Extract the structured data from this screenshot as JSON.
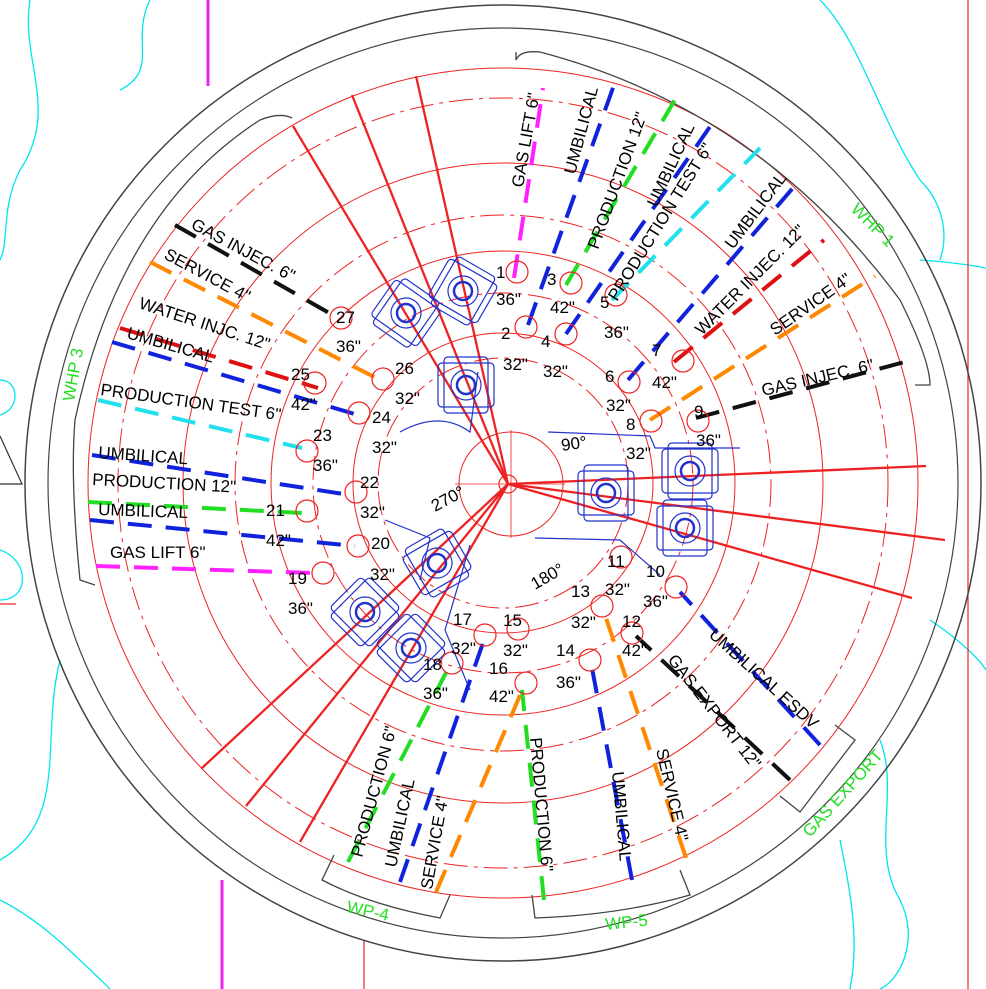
{
  "colors": {
    "background": "#ffffff",
    "rings": "#ee2222",
    "structure": "#2233cc",
    "contours": "#00e5ee",
    "magenta": "#ee22ee",
    "gas_lift": "#ff22ff",
    "umbilical": "#1122dd",
    "production": "#22dd22",
    "production_test": "#22e0ee",
    "water_injection": "#dd1111",
    "service": "#ff8800",
    "gas": "#111111",
    "zone_label": "#22dd22"
  },
  "zones": {
    "whp1": "WHP 1",
    "whp3": "WHP 3",
    "wp4": "WP-4",
    "wp5": "WP-5",
    "gas_export": "GAS EXPORT"
  },
  "angles": {
    "a90": "90°",
    "a180": "180°",
    "a270": "270°"
  },
  "slots": [
    {
      "num": "1",
      "size": "36\""
    },
    {
      "num": "2",
      "size": "32\""
    },
    {
      "num": "3",
      "size": "42\""
    },
    {
      "num": "4",
      "size": "32\""
    },
    {
      "num": "5",
      "size": "36\""
    },
    {
      "num": "6",
      "size": "32\""
    },
    {
      "num": "7",
      "size": "42\""
    },
    {
      "num": "8",
      "size": "32\""
    },
    {
      "num": "9",
      "size": "36\""
    },
    {
      "num": "10",
      "size": "36\""
    },
    {
      "num": "11",
      "size": "32\""
    },
    {
      "num": "12",
      "size": "42\""
    },
    {
      "num": "13",
      "size": "32\""
    },
    {
      "num": "14",
      "size": "36\""
    },
    {
      "num": "15",
      "size": "32\""
    },
    {
      "num": "16",
      "size": "42\""
    },
    {
      "num": "17",
      "size": "32\""
    },
    {
      "num": "18",
      "size": "36\""
    },
    {
      "num": "19",
      "size": "36\""
    },
    {
      "num": "20",
      "size": "32\""
    },
    {
      "num": "21",
      "size": "42\""
    },
    {
      "num": "22",
      "size": "32\""
    },
    {
      "num": "23",
      "size": "36\""
    },
    {
      "num": "24",
      "size": "32\""
    },
    {
      "num": "25",
      "size": "42\""
    },
    {
      "num": "26",
      "size": "32\""
    },
    {
      "num": "27",
      "size": "36\""
    }
  ],
  "lines": {
    "whp1_gas_lift": "GAS LIFT 6\"",
    "whp1_umbilical_a": "UMBILICAL",
    "whp1_production": "PRODUCTION 12\"",
    "whp1_umbilical_b": "UMBILICAL",
    "whp1_production_test": "PRODUCTION TEST 6\"",
    "whp1_umbilical_c": "UMBILICAL",
    "whp1_water_injection": "WATER INJEC. 12\"",
    "whp1_service": "SERVICE 4\"",
    "whp1_gas_injection": "GAS INJEC. 6\"",
    "whp3_gas_injection": "GAS INJEC. 6\"",
    "whp3_service": "SERVICE 4\"",
    "whp3_water_injection": "WATER INJC. 12\"",
    "whp3_umbilical_a": "UMBILICAL",
    "whp3_production_test": "PRODUCTION TEST 6\"",
    "whp3_umbilical_b": "UMBILICAL",
    "whp3_production": "PRODUCTION 12\"",
    "whp3_umbilical_c": "UMBILICAL",
    "whp3_gas_lift": "GAS LIFT 6\"",
    "export_umbilical": "UMBILICAL ESDV",
    "export_gas": "GAS EXPORT 12\"",
    "wp4_production": "PRODUCTION 6\"",
    "wp4_umbilical": "UMBILICAL",
    "wp4_service": "SERVICE 4\"",
    "wp5_production": "PRODUCTION 6\"",
    "wp5_umbilical": "UMBILICAL",
    "wp5_service": "SERVICE 4\""
  }
}
